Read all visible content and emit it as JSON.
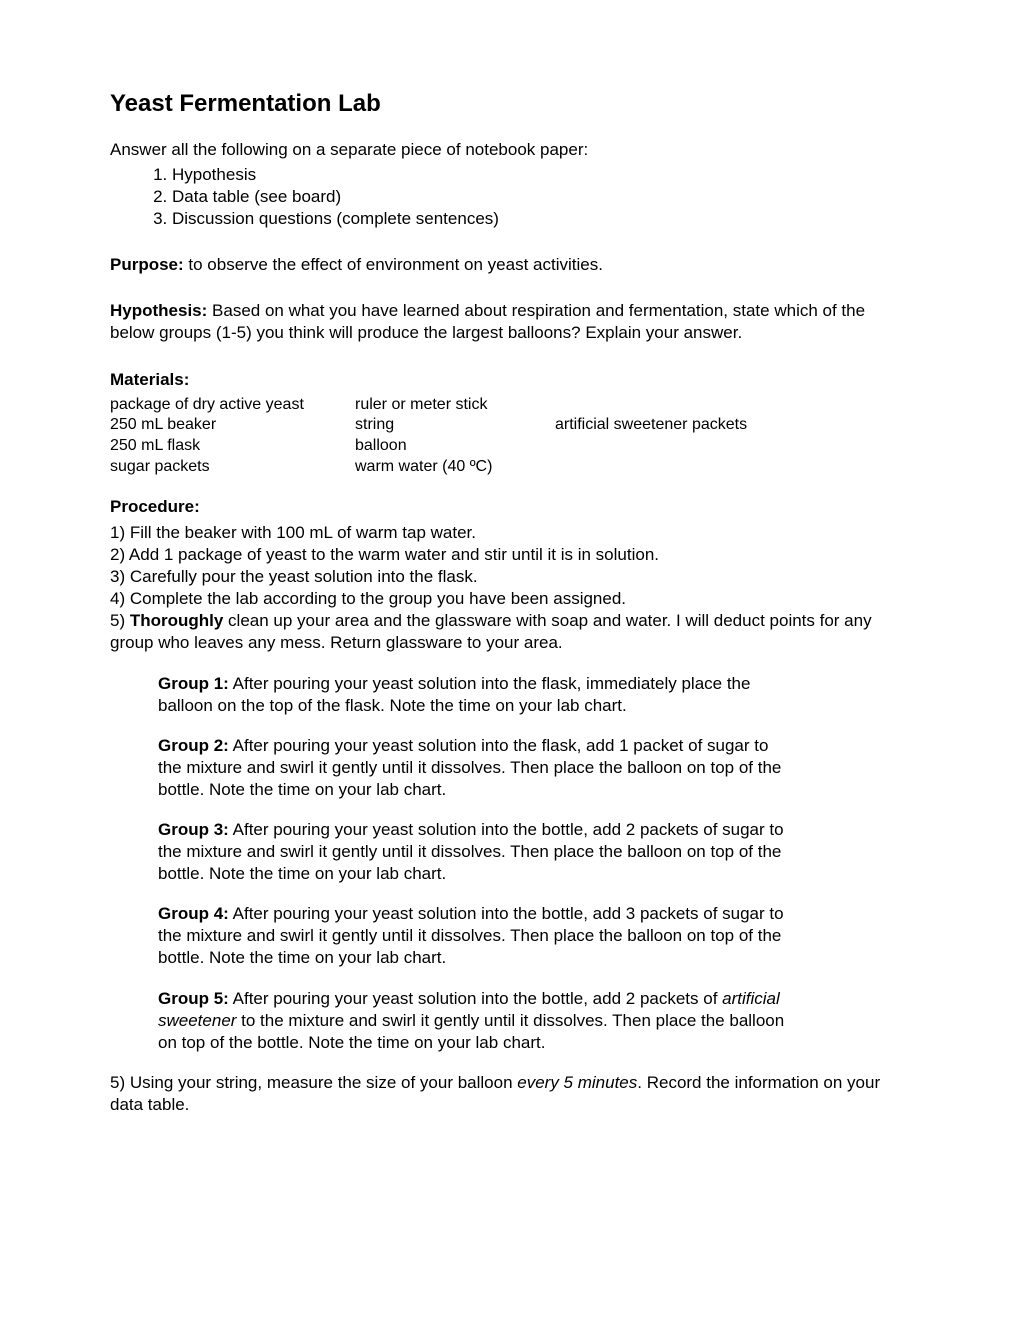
{
  "title": "Yeast Fermentation Lab",
  "intro": "Answer all the following on a separate piece of notebook paper:",
  "answerList": {
    "i1": "Hypothesis",
    "i2": "Data table (see board)",
    "i3": "Discussion questions (complete sentences)"
  },
  "purpose": {
    "label": "Purpose:",
    "text": "  to observe the effect of environment on yeast activities."
  },
  "hypothesis": {
    "label": "Hypothesis:",
    "text": " Based on what you have learned about respiration and fermentation, state which of the below groups (1-5) you think will produce the largest balloons? Explain your answer."
  },
  "materials": {
    "label": "Materials:",
    "c1r1": "package of dry active yeast",
    "c2r1": "ruler or meter stick",
    "c3r1": "",
    "c1r2": "250 mL beaker",
    "c2r2": "string",
    "c3r2": "artificial sweetener packets",
    "c1r3": "250 mL flask",
    "c2r3": "balloon",
    "c3r3": "",
    "c1r4": "sugar packets",
    "c2r4": "warm water (40 ºC)",
    "c3r4": ""
  },
  "procedure": {
    "label": "Procedure:",
    "s1": "1) Fill the beaker with 100 mL of warm tap water.",
    "s2": "2) Add 1 package of yeast to the warm water and stir until it is in solution.",
    "s3": "3) Carefully pour the yeast solution into the flask.",
    "s4": "4) Complete the lab according to the group you have been assigned.",
    "s5a": "5) ",
    "s5b": "Thoroughly",
    "s5c": " clean up your area and the glassware with soap and water. I will deduct points for any group who leaves any mess. Return glassware to your area."
  },
  "groups": {
    "g1": {
      "label": "Group 1:",
      "text": " After pouring your yeast solution into the flask, immediately place the balloon on the top of the flask. Note the time on your lab chart."
    },
    "g2": {
      "label": "Group 2:",
      "text": " After pouring your yeast solution into the flask, add 1 packet of sugar to the mixture and swirl it gently until it dissolves.  Then place the balloon on top of the bottle.  Note the time on your lab chart."
    },
    "g3": {
      "label": "Group 3:",
      "text": " After pouring your yeast solution into the bottle, add 2 packets of sugar to the mixture and swirl it gently until it dissolves.  Then place the balloon on top of the bottle.  Note the time on your lab chart."
    },
    "g4": {
      "label": "Group 4:",
      "text": " After pouring your yeast solution into the bottle, add 3 packets of sugar to the mixture and swirl it gently until it dissolves.  Then place the balloon on top of the bottle.  Note the time on your lab chart."
    },
    "g5": {
      "label": "Group 5:",
      "text1": " After pouring your yeast solution into the bottle, add 2 packets of ",
      "italic": "artificial sweetener",
      "text2": " to the mixture and swirl it gently until it dissolves.  Then place the balloon on top of the bottle.  Note the time on your lab chart."
    }
  },
  "final": {
    "text1": "5) Using your string, measure the size of your balloon ",
    "italic": "every 5 minutes",
    "text2": ". Record the information on your data table."
  }
}
